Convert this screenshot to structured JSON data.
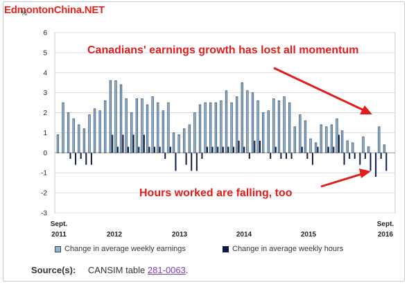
{
  "watermark": "EdmontonChina.NET",
  "y_unit": "%",
  "annotations": {
    "top": "Canadians' earnings growth has lost all momentum",
    "bottom": "Hours worked are falling, too"
  },
  "legend": {
    "earnings": "Change in average weekly earnings",
    "hours": "Change in average weekly hours"
  },
  "source": {
    "label": "Source(s):",
    "text": "CANSIM table",
    "link": "281-0063",
    "end": "."
  },
  "colors": {
    "earnings": "#8fb4d4",
    "earnings_outline": "#31485e",
    "hours": "#0d1a47",
    "annotation": "#e11d1d",
    "watermark": "#e8231f"
  },
  "chart_data": {
    "type": "bar",
    "x_start": "Sept. 2011",
    "x_end": "Sept. 2016",
    "x_ticks": [
      {
        "label": "Sept.",
        "label2": "2011"
      },
      {
        "label": "2012"
      },
      {
        "label": "2013"
      },
      {
        "label": "2014"
      },
      {
        "label": "2015"
      },
      {
        "label": "Sept.",
        "label2": "2016"
      }
    ],
    "ylim": [
      -3,
      6
    ],
    "yticks": [
      -3,
      -2,
      -1,
      0,
      1,
      2,
      3,
      4,
      5,
      6
    ],
    "grid": true,
    "legend_position": "bottom",
    "series": [
      {
        "name": "Change in average weekly earnings",
        "values": [
          0.9,
          2.5,
          2.0,
          1.7,
          1.4,
          1.2,
          1.9,
          2.2,
          2.1,
          2.6,
          3.6,
          3.6,
          3.4,
          2.7,
          2.0,
          2.7,
          2.7,
          2.4,
          2.8,
          2.5,
          2.1,
          2.5,
          1.0,
          0.9,
          1.2,
          1.4,
          2.0,
          2.4,
          2.5,
          2.5,
          2.5,
          2.6,
          3.1,
          2.5,
          2.8,
          3.5,
          3.1,
          3.0,
          2.6,
          2.0,
          2.1,
          2.7,
          2.6,
          2.8,
          2.5,
          1.3,
          1.9,
          1.6,
          0.7,
          0.5,
          1.4,
          1.3,
          1.4,
          1.7,
          1.1,
          0.6,
          0.5,
          0.0,
          0.8,
          0.3,
          0.0,
          1.3,
          0.4
        ]
      },
      {
        "name": "Change in average weekly hours",
        "values": [
          0.0,
          0.0,
          -0.3,
          -0.6,
          -0.3,
          -0.6,
          -0.6,
          0.0,
          0.0,
          0.0,
          0.9,
          0.3,
          0.9,
          0.3,
          0.9,
          0.3,
          0.9,
          0.3,
          0.3,
          0.3,
          -0.3,
          0.3,
          -0.9,
          0.0,
          -0.6,
          -0.9,
          -0.9,
          -0.3,
          0.3,
          0.3,
          0.3,
          0.3,
          0.3,
          0.3,
          0.6,
          0.3,
          -0.3,
          0.6,
          0.6,
          0.0,
          -0.3,
          0.3,
          -0.3,
          -0.3,
          -0.3,
          0.0,
          0.3,
          -0.3,
          -0.6,
          0.3,
          0.0,
          0.3,
          0.3,
          0.9,
          -0.6,
          -0.3,
          -0.3,
          -0.6,
          -0.3,
          -0.9,
          -1.2,
          -0.3,
          -0.9
        ]
      }
    ]
  }
}
